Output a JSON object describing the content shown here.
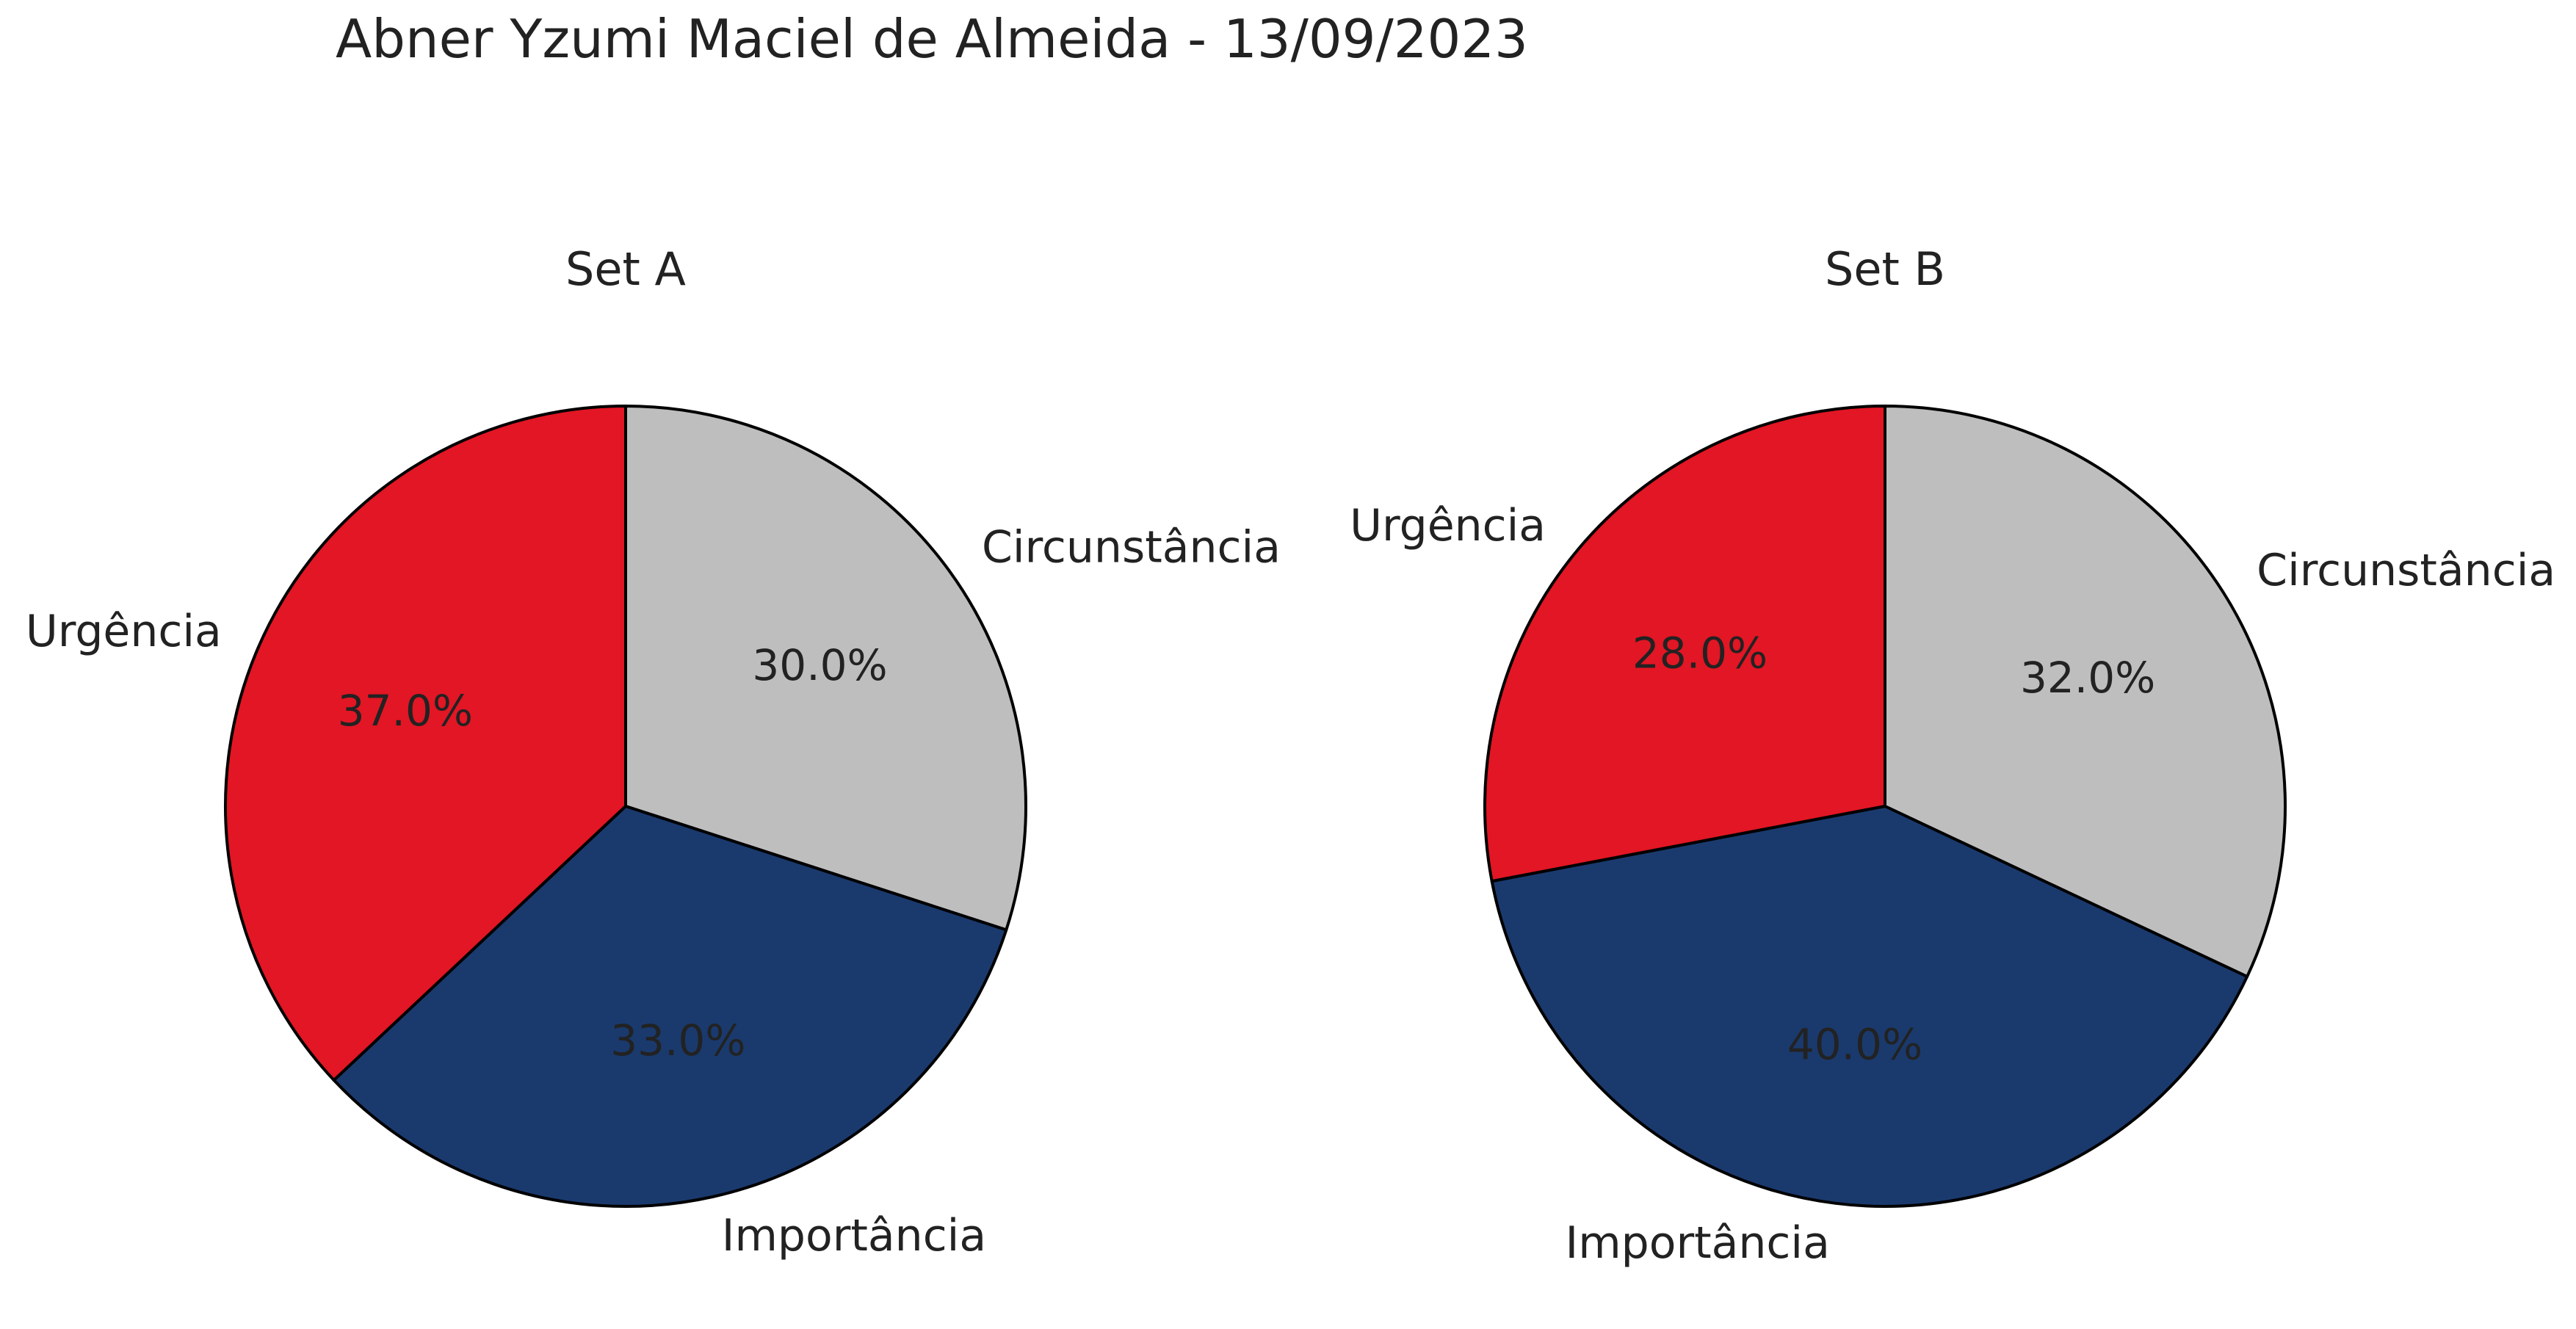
{
  "figure": {
    "suptitle": "Abner Yzumi Maciel de Almeida - 13/09/2023"
  },
  "colors": {
    "Urgência": "#e21624",
    "Importância": "#1a3a6e",
    "Circunstância": "#bdbebd",
    "edge": "#000000",
    "text": "#222222"
  },
  "chart_data": [
    {
      "type": "pie",
      "title": "Set A",
      "slices": [
        {
          "label": "Circunstância",
          "value": 30.0,
          "pct_label": "30.0%"
        },
        {
          "label": "Importância",
          "value": 33.0,
          "pct_label": "33.0%"
        },
        {
          "label": "Urgência",
          "value": 37.0,
          "pct_label": "37.0%"
        }
      ],
      "start_angle": "12 o'clock",
      "direction": "clockwise"
    },
    {
      "type": "pie",
      "title": "Set B",
      "slices": [
        {
          "label": "Circunstância",
          "value": 32.0,
          "pct_label": "32.0%"
        },
        {
          "label": "Importância",
          "value": 40.0,
          "pct_label": "40.0%"
        },
        {
          "label": "Urgência",
          "value": 28.0,
          "pct_label": "28.0%"
        }
      ],
      "start_angle": "12 o'clock",
      "direction": "clockwise"
    }
  ]
}
